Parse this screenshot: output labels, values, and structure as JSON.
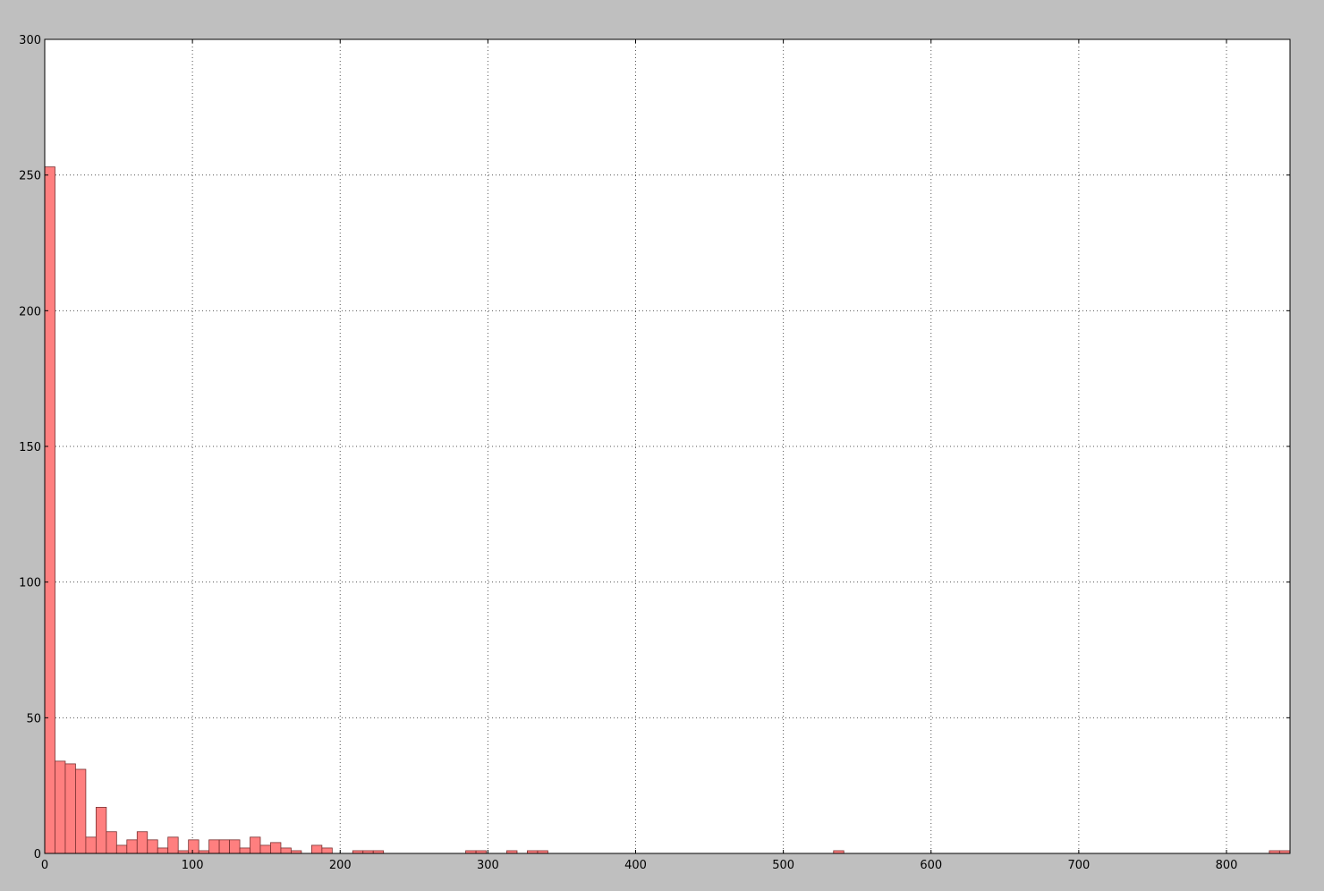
{
  "chart_data": {
    "type": "bar",
    "title": "",
    "xlabel": "",
    "ylabel": "",
    "xlim": [
      0,
      843
    ],
    "ylim": [
      0,
      300
    ],
    "xticks": [
      0,
      100,
      200,
      300,
      400,
      500,
      600,
      700,
      800
    ],
    "yticks": [
      0,
      50,
      100,
      150,
      200,
      250,
      300
    ],
    "grid": true,
    "bar_color": "#ff7f7f",
    "edge_color": "#7a2f2f",
    "background_color": "#bfbfbf",
    "plot_background_color": "#ffffff",
    "bin_width": 6.95,
    "bins": [
      {
        "x0": 0.0,
        "count": 253
      },
      {
        "x0": 6.95,
        "count": 34
      },
      {
        "x0": 13.9,
        "count": 33
      },
      {
        "x0": 20.85,
        "count": 31
      },
      {
        "x0": 27.8,
        "count": 6
      },
      {
        "x0": 34.75,
        "count": 17
      },
      {
        "x0": 41.7,
        "count": 8
      },
      {
        "x0": 48.65,
        "count": 3
      },
      {
        "x0": 55.6,
        "count": 5
      },
      {
        "x0": 62.55,
        "count": 8
      },
      {
        "x0": 69.5,
        "count": 5
      },
      {
        "x0": 76.45,
        "count": 2
      },
      {
        "x0": 83.4,
        "count": 6
      },
      {
        "x0": 90.35,
        "count": 1
      },
      {
        "x0": 97.3,
        "count": 5
      },
      {
        "x0": 104.25,
        "count": 1
      },
      {
        "x0": 111.2,
        "count": 5
      },
      {
        "x0": 118.15,
        "count": 5
      },
      {
        "x0": 125.1,
        "count": 5
      },
      {
        "x0": 132.05,
        "count": 2
      },
      {
        "x0": 139.0,
        "count": 6
      },
      {
        "x0": 145.95,
        "count": 3
      },
      {
        "x0": 152.9,
        "count": 4
      },
      {
        "x0": 159.85,
        "count": 2
      },
      {
        "x0": 166.8,
        "count": 1
      },
      {
        "x0": 180.7,
        "count": 3
      },
      {
        "x0": 187.65,
        "count": 2
      },
      {
        "x0": 208.5,
        "count": 1
      },
      {
        "x0": 215.45,
        "count": 1
      },
      {
        "x0": 222.4,
        "count": 1
      },
      {
        "x0": 285.0,
        "count": 1
      },
      {
        "x0": 291.95,
        "count": 1
      },
      {
        "x0": 312.8,
        "count": 1
      },
      {
        "x0": 326.7,
        "count": 1
      },
      {
        "x0": 333.65,
        "count": 1
      },
      {
        "x0": 534.0,
        "count": 1
      },
      {
        "x0": 829.0,
        "count": 1
      },
      {
        "x0": 835.95,
        "count": 1
      }
    ]
  }
}
